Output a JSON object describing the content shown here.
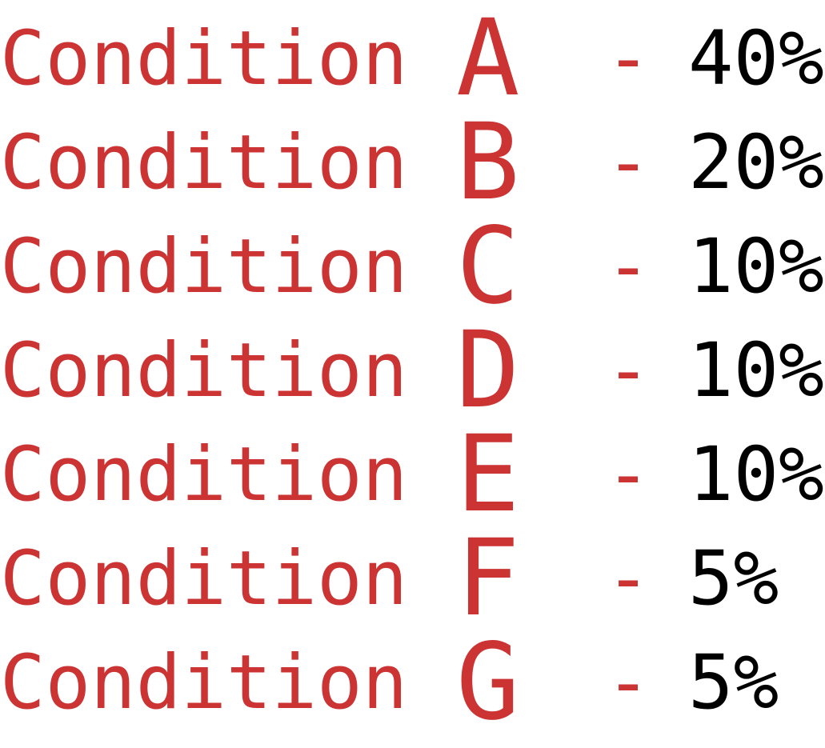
{
  "colors": {
    "label": "#cc3333",
    "value": "#000000"
  },
  "conditions": [
    {
      "word": "Condition",
      "letter": "A",
      "dash": "-",
      "percent": "40%"
    },
    {
      "word": "Condition",
      "letter": "B",
      "dash": "-",
      "percent": "20%"
    },
    {
      "word": "Condition",
      "letter": "C",
      "dash": "-",
      "percent": "10%"
    },
    {
      "word": "Condition",
      "letter": "D",
      "dash": "-",
      "percent": "10%"
    },
    {
      "word": "Condition",
      "letter": "E",
      "dash": "-",
      "percent": "10%"
    },
    {
      "word": "Condition",
      "letter": "F",
      "dash": "-",
      "percent": "5%"
    },
    {
      "word": "Condition",
      "letter": "G",
      "dash": "-",
      "percent": "5%"
    }
  ]
}
